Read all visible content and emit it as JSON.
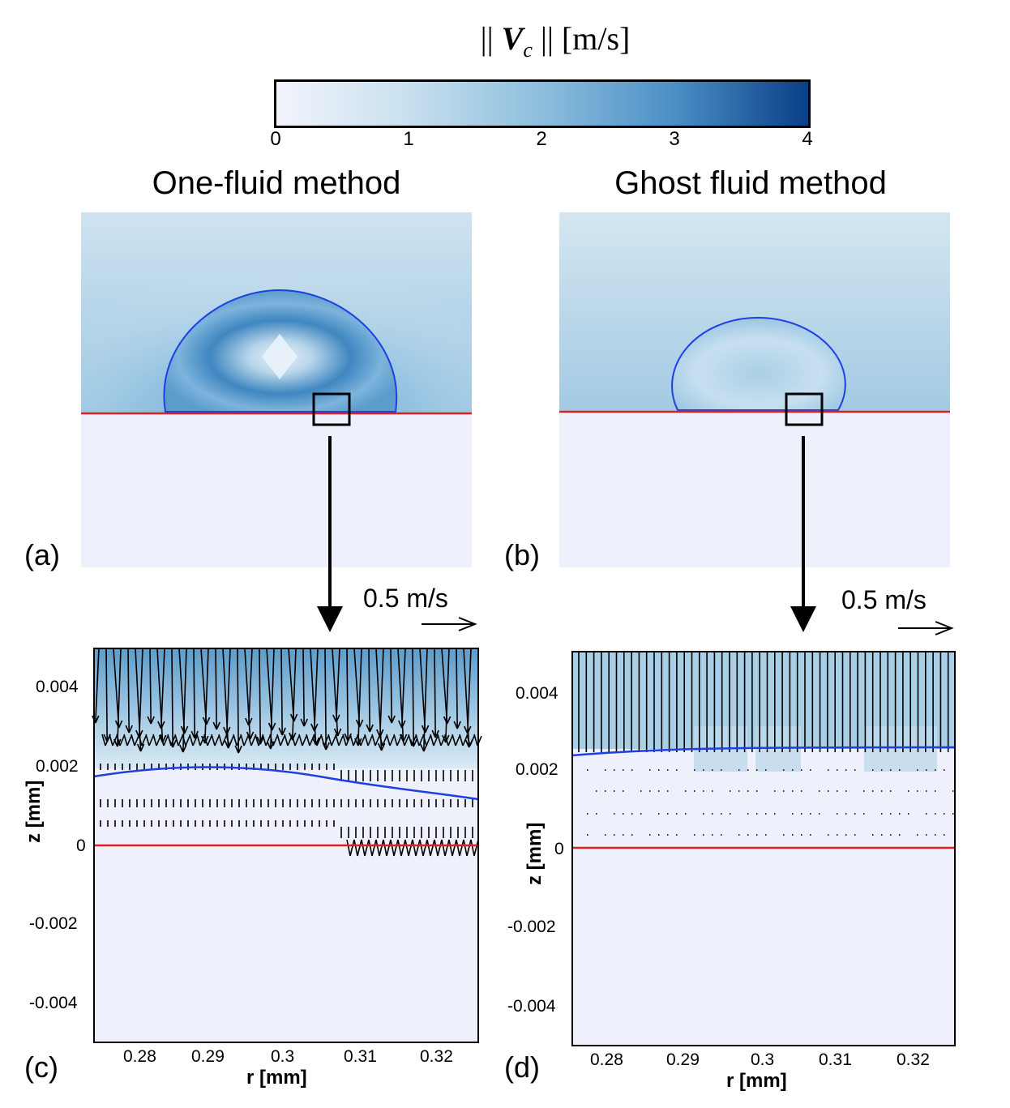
{
  "colorbar": {
    "title": "|| V_c || [m/s]",
    "title_parts": {
      "pre": "|| ",
      "symbol": "V",
      "subscript": "c",
      "post": " || [m/s]"
    },
    "ticks": [
      "0",
      "1",
      "2",
      "3",
      "4"
    ],
    "range": [
      0,
      4
    ]
  },
  "panels": {
    "a": {
      "label": "(a)",
      "title": "One-fluid method"
    },
    "b": {
      "label": "(b)",
      "title": "Ghost fluid method"
    },
    "c": {
      "label": "(c)",
      "scale_label": "0.5 m/s"
    },
    "d": {
      "label": "(d)",
      "scale_label": "0.5 m/s"
    }
  },
  "axes": {
    "xlabel": "r [mm]",
    "ylabel": "z [mm]",
    "xticks": [
      "0.28",
      "0.29",
      "0.3",
      "0.31",
      "0.32"
    ],
    "yticks": [
      "0.004",
      "0.002",
      "0",
      "-0.002",
      "-0.004"
    ],
    "xlim": [
      0.275,
      0.325
    ],
    "ylim": [
      -0.005,
      0.005
    ]
  },
  "colors": {
    "interface": "#1f3fe0",
    "wall": "#e02020",
    "cmap_low": "#eef1fb",
    "cmap_high": "#0a3f86"
  }
}
